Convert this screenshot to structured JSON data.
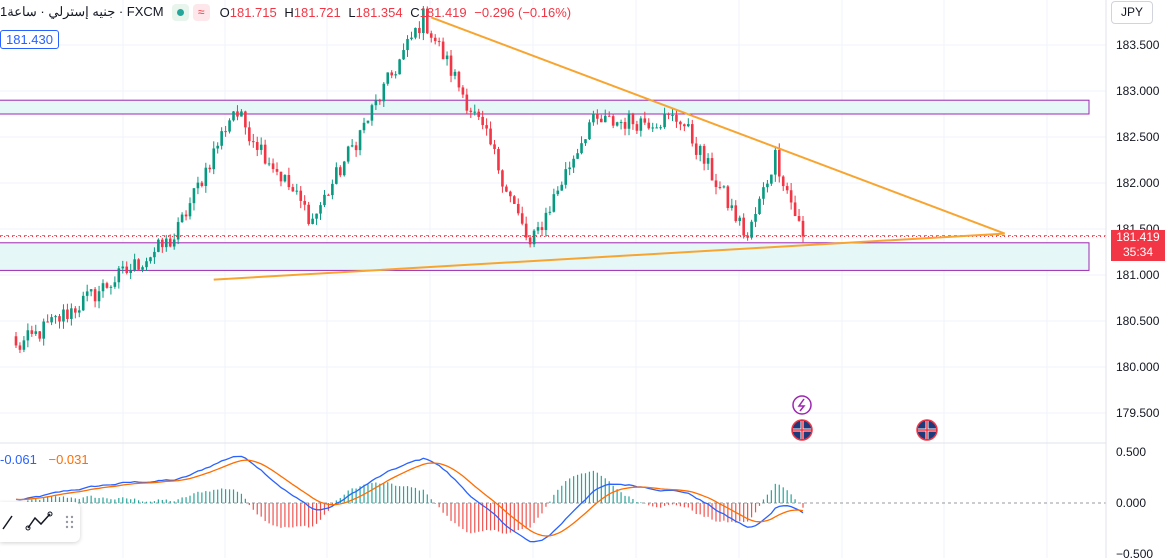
{
  "legend": {
    "symbol": "جنيه إسترلي · ساعة1 · FXCM",
    "open_label": "O",
    "open": "181.715",
    "high_label": "H",
    "high": "181.721",
    "low_label": "L",
    "low": "181.354",
    "close_label": "C",
    "close": "181.419",
    "change": "−0.296 (−0.16%)"
  },
  "crosshair_price": "181.430",
  "currency": "JPY",
  "last_price": {
    "price": "181.419",
    "countdown": "35:34"
  },
  "macd_legend": {
    "macd": "-0.061",
    "signal": "−0.031"
  },
  "colors": {
    "up": "#089981",
    "down": "#f23645",
    "trend": "#f7a530",
    "zone_fill": "#e6f7f8",
    "zone_border": "#9c27b0",
    "macd": "#2962ff",
    "signal": "#ff6d00"
  },
  "chart_data": [
    {
      "type": "candlestick",
      "title": "",
      "y_axis_ticks": [
        "183.500",
        "183.000",
        "182.500",
        "182.000",
        "181.500",
        "181.000",
        "180.500",
        "180.000",
        "179.500"
      ],
      "ylim": [
        179.2,
        183.9
      ],
      "candles_count": 200,
      "key_points": [
        {
          "bar": 0,
          "close": 180.2
        },
        {
          "bar": 40,
          "close": 181.4
        },
        {
          "bar": 55,
          "close": 182.8
        },
        {
          "bar": 75,
          "close": 181.6
        },
        {
          "bar": 103,
          "close": 183.8
        },
        {
          "bar": 120,
          "close": 182.4
        },
        {
          "bar": 130,
          "close": 181.3
        },
        {
          "bar": 145,
          "close": 182.65
        },
        {
          "bar": 168,
          "close": 182.7
        },
        {
          "bar": 185,
          "close": 181.4
        },
        {
          "bar": 192,
          "close": 182.3
        },
        {
          "bar": 199,
          "close": 181.419
        }
      ],
      "zones": [
        {
          "top": 182.9,
          "bottom": 182.75
        },
        {
          "top": 181.35,
          "bottom": 181.05
        }
      ],
      "trendlines": [
        {
          "from": [
            105,
            183.8
          ],
          "to": [
            250,
            181.45
          ]
        },
        {
          "from": [
            50,
            180.95
          ],
          "to": [
            250,
            181.45
          ]
        }
      ],
      "event_icons": [
        "flash-icon",
        "uk-flag-icon",
        "uk-flag-icon"
      ]
    },
    {
      "type": "macd",
      "y_axis_ticks": [
        "0.500",
        "0.000",
        "−0.500"
      ],
      "ylim": [
        -0.6,
        0.55
      ],
      "macd": -0.061,
      "signal": -0.031
    }
  ]
}
